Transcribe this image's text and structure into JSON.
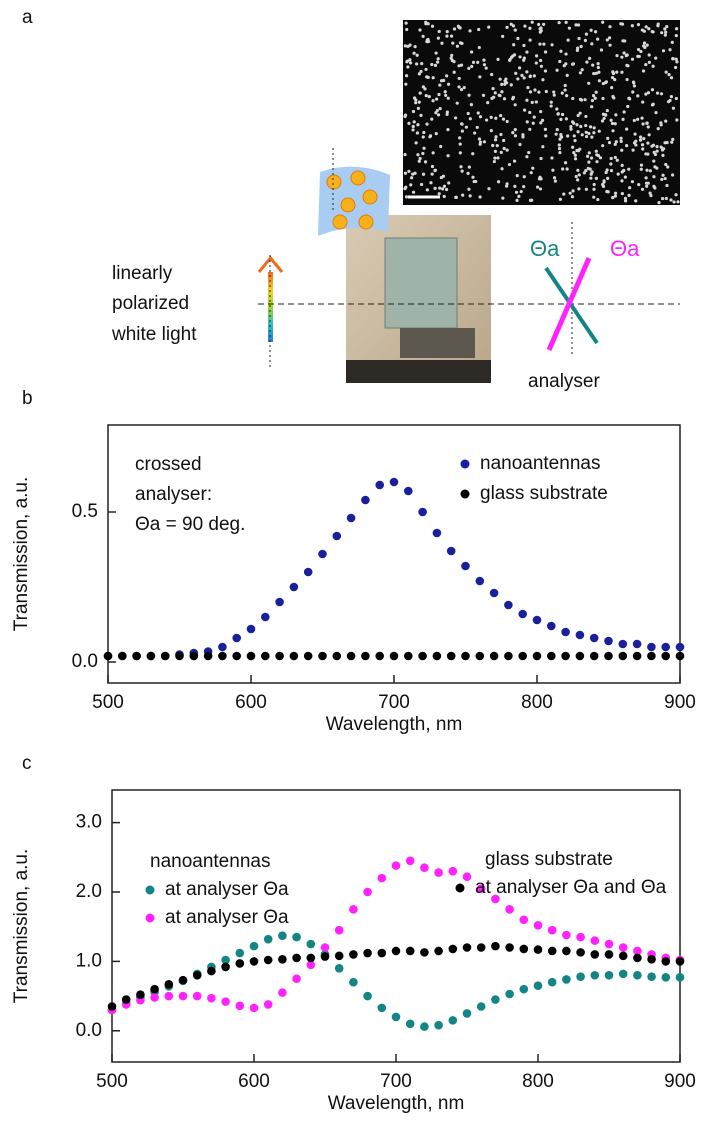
{
  "panel_a": {
    "label": "a",
    "light_text": [
      "linearly",
      "polarized",
      "white light"
    ],
    "angle_labels": [
      "Θa",
      "Θa"
    ],
    "analyser": "analyser"
  },
  "chart_data": [
    {
      "type": "scatter",
      "panel": "b",
      "x_label": "Wavelength, nm",
      "y_label": "Transmission, a.u.",
      "annotation": [
        "crossed",
        "analyser:",
        "Θa = 90 deg."
      ],
      "x": [
        500,
        510,
        520,
        530,
        540,
        550,
        560,
        570,
        580,
        590,
        600,
        610,
        620,
        630,
        640,
        650,
        660,
        670,
        680,
        690,
        700,
        710,
        720,
        730,
        740,
        750,
        760,
        770,
        780,
        790,
        800,
        810,
        820,
        830,
        840,
        850,
        860,
        870,
        880,
        890,
        900
      ],
      "series": [
        {
          "name": "nanoantennas",
          "color": "#1a1f9c",
          "values": [
            0.02,
            0.02,
            0.02,
            0.02,
            0.02,
            0.025,
            0.03,
            0.035,
            0.05,
            0.08,
            0.11,
            0.15,
            0.2,
            0.25,
            0.3,
            0.36,
            0.42,
            0.48,
            0.54,
            0.59,
            0.6,
            0.57,
            0.5,
            0.43,
            0.37,
            0.32,
            0.27,
            0.23,
            0.19,
            0.16,
            0.14,
            0.12,
            0.1,
            0.09,
            0.08,
            0.07,
            0.06,
            0.06,
            0.05,
            0.05,
            0.05
          ]
        },
        {
          "name": "glass substrate",
          "color": "#000000",
          "values": [
            0.02,
            0.02,
            0.02,
            0.02,
            0.02,
            0.02,
            0.02,
            0.02,
            0.02,
            0.02,
            0.02,
            0.02,
            0.02,
            0.02,
            0.02,
            0.02,
            0.02,
            0.02,
            0.02,
            0.02,
            0.02,
            0.02,
            0.02,
            0.02,
            0.02,
            0.02,
            0.02,
            0.02,
            0.02,
            0.02,
            0.02,
            0.02,
            0.02,
            0.02,
            0.02,
            0.02,
            0.02,
            0.02,
            0.02,
            0.02,
            0.02
          ]
        }
      ],
      "xlim": [
        500,
        900
      ],
      "xticks": [
        500,
        600,
        700,
        800,
        900
      ],
      "ylim": [
        -0.07,
        0.79
      ],
      "yticks": [
        {
          "value": 0,
          "label": "0.0"
        },
        0.5
      ]
    },
    {
      "type": "scatter",
      "panel": "c",
      "x_label": "Wavelength, nm",
      "y_label": "Transmission, a.u.",
      "legend_groups": [
        "nanoantennas",
        "glass substrate"
      ],
      "x": [
        500,
        510,
        520,
        530,
        540,
        550,
        560,
        570,
        580,
        590,
        600,
        610,
        620,
        630,
        640,
        650,
        660,
        670,
        680,
        690,
        700,
        710,
        720,
        730,
        740,
        750,
        760,
        770,
        780,
        790,
        800,
        810,
        820,
        830,
        840,
        850,
        860,
        870,
        880,
        890,
        900
      ],
      "series": [
        {
          "name": "at analyser Θa",
          "color": "#138585",
          "values": [
            0.3,
            0.4,
            0.48,
            0.56,
            0.64,
            0.72,
            0.82,
            0.92,
            1.02,
            1.12,
            1.22,
            1.32,
            1.37,
            1.35,
            1.25,
            1.1,
            0.9,
            0.7,
            0.5,
            0.33,
            0.2,
            0.1,
            0.06,
            0.08,
            0.15,
            0.25,
            0.35,
            0.45,
            0.53,
            0.6,
            0.65,
            0.7,
            0.74,
            0.78,
            0.8,
            0.8,
            0.82,
            0.8,
            0.78,
            0.77,
            0.77
          ]
        },
        {
          "name": "at analyser Θa",
          "color": "#ff22ff",
          "values": [
            0.3,
            0.38,
            0.44,
            0.48,
            0.5,
            0.5,
            0.5,
            0.47,
            0.42,
            0.36,
            0.33,
            0.38,
            0.55,
            0.75,
            0.95,
            1.2,
            1.45,
            1.75,
            2.0,
            2.2,
            2.38,
            2.45,
            2.35,
            2.28,
            2.3,
            2.22,
            2.05,
            1.9,
            1.75,
            1.6,
            1.52,
            1.45,
            1.38,
            1.35,
            1.3,
            1.25,
            1.2,
            1.15,
            1.1,
            1.05,
            1.02
          ]
        },
        {
          "name": "at analyser Θa and Θa",
          "color": "#000000",
          "values": [
            0.35,
            0.45,
            0.52,
            0.6,
            0.67,
            0.73,
            0.8,
            0.86,
            0.92,
            0.97,
            1.0,
            1.02,
            1.03,
            1.05,
            1.05,
            1.07,
            1.08,
            1.1,
            1.12,
            1.12,
            1.15,
            1.15,
            1.13,
            1.15,
            1.18,
            1.2,
            1.2,
            1.22,
            1.2,
            1.18,
            1.17,
            1.15,
            1.15,
            1.13,
            1.1,
            1.1,
            1.08,
            1.05,
            1.03,
            1.0,
            1.0
          ]
        }
      ],
      "xlim": [
        500,
        900
      ],
      "xticks": [
        500,
        600,
        700,
        800,
        900
      ],
      "ylim": [
        -0.45,
        3.47
      ],
      "yticks": [
        {
          "value": 0,
          "label": "0.0"
        },
        {
          "value": 1,
          "label": "1.0"
        },
        {
          "value": 2,
          "label": "2.0"
        },
        {
          "value": 3,
          "label": "3.0"
        }
      ]
    }
  ]
}
